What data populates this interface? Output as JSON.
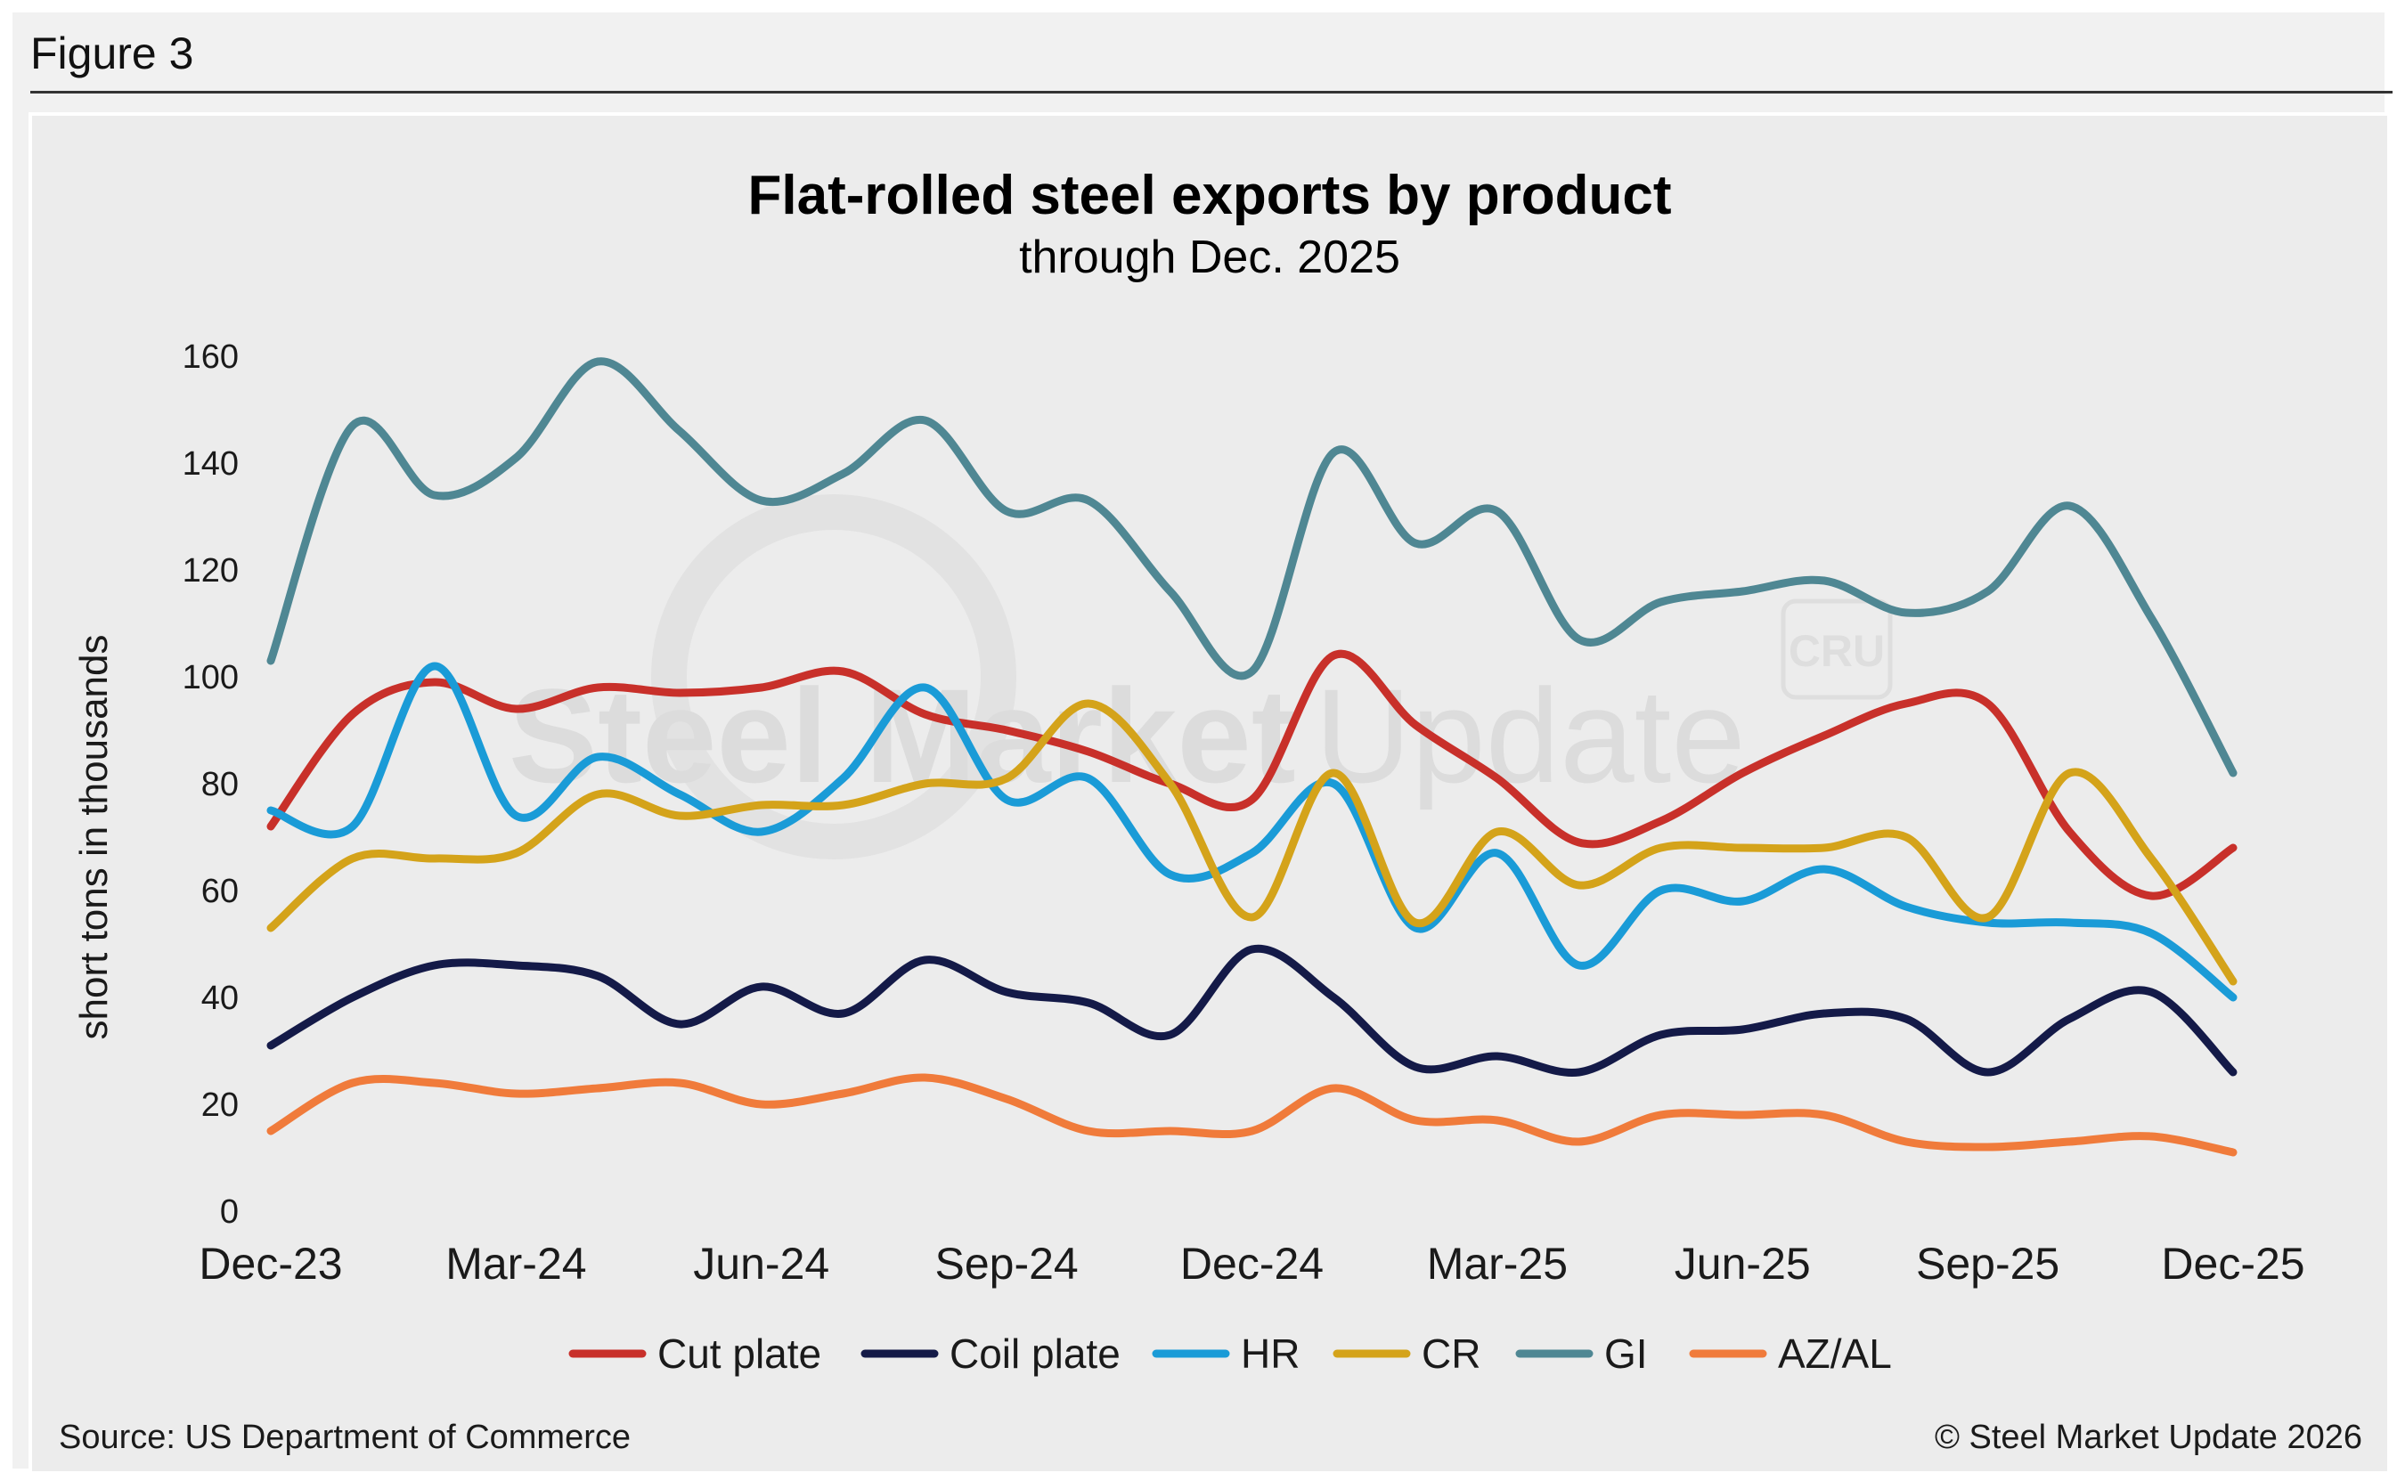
{
  "figure_label": "Figure 3",
  "footer": {
    "source": "Source: US Department of Commerce",
    "copyright": "© Steel Market Update 2026"
  },
  "watermark": {
    "brand_bold": "Steel Market",
    "brand_light": "Update",
    "logo_text": "CRU"
  },
  "chart_data": {
    "type": "line",
    "title": "Flat-rolled steel exports by product",
    "subtitle": "through Dec. 2025",
    "xlabel": "",
    "ylabel": "short tons in thousands",
    "ylim": [
      0,
      160
    ],
    "yticks": [
      0,
      20,
      40,
      60,
      80,
      100,
      120,
      140,
      160
    ],
    "xtick_labels": [
      "Dec-23",
      "Mar-24",
      "Jun-24",
      "Sep-24",
      "Dec-24",
      "Mar-25",
      "Jun-25",
      "Sep-25",
      "Dec-25"
    ],
    "x": [
      "Dec-23",
      "Jan-24",
      "Feb-24",
      "Mar-24",
      "Apr-24",
      "May-24",
      "Jun-24",
      "Jul-24",
      "Aug-24",
      "Sep-24",
      "Oct-24",
      "Nov-24",
      "Dec-24",
      "Jan-25",
      "Feb-25",
      "Mar-25",
      "Apr-25",
      "May-25",
      "Jun-25",
      "Jul-25",
      "Aug-25",
      "Sep-25",
      "Oct-25",
      "Nov-25",
      "Dec-25"
    ],
    "grid": false,
    "legend_position": "bottom",
    "series": [
      {
        "name": "Cut plate",
        "color": "#c8302a",
        "values": [
          72,
          93,
          99,
          94,
          98,
          97,
          98,
          101,
          93,
          90,
          86,
          80,
          77,
          104,
          91,
          81,
          69,
          73,
          82,
          89,
          95,
          95,
          71,
          59,
          68
        ]
      },
      {
        "name": "Coil plate",
        "color": "#141a48",
        "values": [
          31,
          40,
          46,
          46,
          44,
          35,
          42,
          37,
          47,
          41,
          39,
          33,
          49,
          40,
          27,
          29,
          26,
          33,
          34,
          37,
          36,
          26,
          36,
          41,
          26
        ]
      },
      {
        "name": "HR",
        "color": "#1a9bd7",
        "values": [
          75,
          72,
          102,
          74,
          85,
          78,
          71,
          81,
          98,
          77,
          81,
          63,
          67,
          80,
          53,
          67,
          46,
          60,
          58,
          64,
          57,
          54,
          54,
          52,
          40
        ]
      },
      {
        "name": "CR",
        "color": "#d4a31a",
        "values": [
          53,
          66,
          66,
          67,
          78,
          74,
          76,
          76,
          80,
          81,
          95,
          80,
          55,
          82,
          54,
          71,
          61,
          68,
          68,
          68,
          70,
          55,
          82,
          66,
          43
        ]
      },
      {
        "name": "GI",
        "color": "#4f8793",
        "values": [
          103,
          147,
          134,
          141,
          159,
          146,
          133,
          138,
          148,
          131,
          133,
          116,
          101,
          142,
          125,
          131,
          107,
          114,
          116,
          118,
          112,
          116,
          132,
          111,
          82
        ]
      },
      {
        "name": "AZ/AL",
        "color": "#f07b3b",
        "values": [
          15,
          24,
          24,
          22,
          23,
          24,
          20,
          22,
          25,
          21,
          15,
          15,
          15,
          23,
          17,
          17,
          13,
          18,
          18,
          18,
          13,
          12,
          13,
          14,
          11
        ]
      }
    ]
  }
}
